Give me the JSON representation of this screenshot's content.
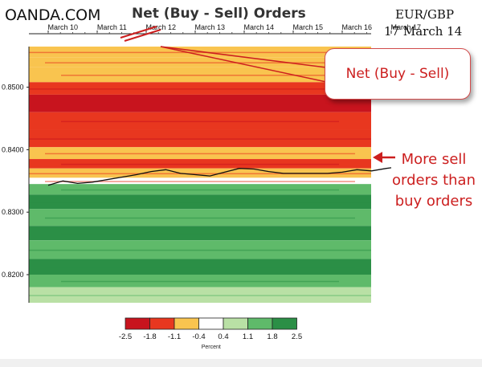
{
  "header": {
    "brand": "OANDA.COM",
    "title": "Net (Buy - Sell) Orders",
    "pair": "EUR/GBP",
    "date": "17 March 14"
  },
  "callout": {
    "text": "Net (Buy - Sell)"
  },
  "annotation": {
    "lines": [
      "More sell",
      "orders than",
      "buy orders"
    ]
  },
  "colors": {
    "strong_sell": "#c8141e",
    "sell": "#e8371f",
    "mild_sell": "#f47a2a",
    "light_sell": "#f9c44f",
    "neutral": "#ffffff",
    "light_buy": "#b9e0a5",
    "buy": "#5fba6a",
    "strong_buy": "#2b8f46",
    "deep_buy": "#17703a",
    "price_line": "#111111",
    "accent_red": "#cc1f1f"
  },
  "chart_data": {
    "type": "heatmap",
    "title": "Net (Buy - Sell) Orders",
    "x_tick_labels": [
      "March 10",
      "March 11",
      "March 12",
      "March 13",
      "March 14",
      "March 15",
      "March 16",
      "March 17"
    ],
    "y_tick_labels": [
      "0.8500",
      "0.8400",
      "0.8300",
      "0.8200"
    ],
    "y_ticks": [
      0.85,
      0.84,
      0.83,
      0.82
    ],
    "ylim": [
      0.8155,
      0.8565
    ],
    "colorbar": {
      "ticks": [
        "-2.5",
        "-1.8",
        "-1.1",
        "-0.4",
        "0.4",
        "1.1",
        "1.8",
        "2.5"
      ],
      "label": "Percent"
    },
    "net_bands": [
      {
        "from": 0.8548,
        "to": 0.8565,
        "net": -0.8
      },
      {
        "from": 0.8532,
        "to": 0.8548,
        "net": -0.6
      },
      {
        "from": 0.8508,
        "to": 0.8532,
        "net": -0.7
      },
      {
        "from": 0.8488,
        "to": 0.8508,
        "net": -1.5
      },
      {
        "from": 0.846,
        "to": 0.8488,
        "net": -2.0
      },
      {
        "from": 0.8432,
        "to": 0.846,
        "net": -1.6
      },
      {
        "from": 0.8404,
        "to": 0.8432,
        "net": -1.3
      },
      {
        "from": 0.8385,
        "to": 0.8404,
        "net": -0.6
      },
      {
        "from": 0.837,
        "to": 0.8385,
        "net": -1.4
      },
      {
        "from": 0.8355,
        "to": 0.837,
        "net": -0.7
      },
      {
        "from": 0.8345,
        "to": 0.8355,
        "net": -0.3
      },
      {
        "from": 0.8328,
        "to": 0.8345,
        "net": 1.4
      },
      {
        "from": 0.8305,
        "to": 0.8328,
        "net": 1.9
      },
      {
        "from": 0.8278,
        "to": 0.8305,
        "net": 1.2
      },
      {
        "from": 0.8255,
        "to": 0.8278,
        "net": 2.1
      },
      {
        "from": 0.8225,
        "to": 0.8255,
        "net": 1.6
      },
      {
        "from": 0.82,
        "to": 0.8225,
        "net": 2.4
      },
      {
        "from": 0.818,
        "to": 0.82,
        "net": 1.5
      },
      {
        "from": 0.8155,
        "to": 0.818,
        "net": 0.8
      }
    ],
    "price_series": {
      "x": [
        0,
        0.3,
        0.6,
        0.9,
        1.2,
        1.5,
        1.8,
        2.1,
        2.4,
        2.7,
        3.0,
        3.3,
        3.6,
        3.9,
        4.2,
        4.5,
        4.8,
        5.1,
        5.4,
        5.7,
        6.0,
        6.3,
        6.6,
        6.9,
        7.0
      ],
      "y": [
        0.8343,
        0.835,
        0.8346,
        0.8348,
        0.8352,
        0.8356,
        0.836,
        0.8365,
        0.8368,
        0.8362,
        0.836,
        0.8358,
        0.8364,
        0.837,
        0.8369,
        0.8365,
        0.8362,
        0.8362,
        0.8362,
        0.8362,
        0.8364,
        0.8368,
        0.8366,
        0.837,
        0.8371
      ]
    },
    "grid": false
  }
}
